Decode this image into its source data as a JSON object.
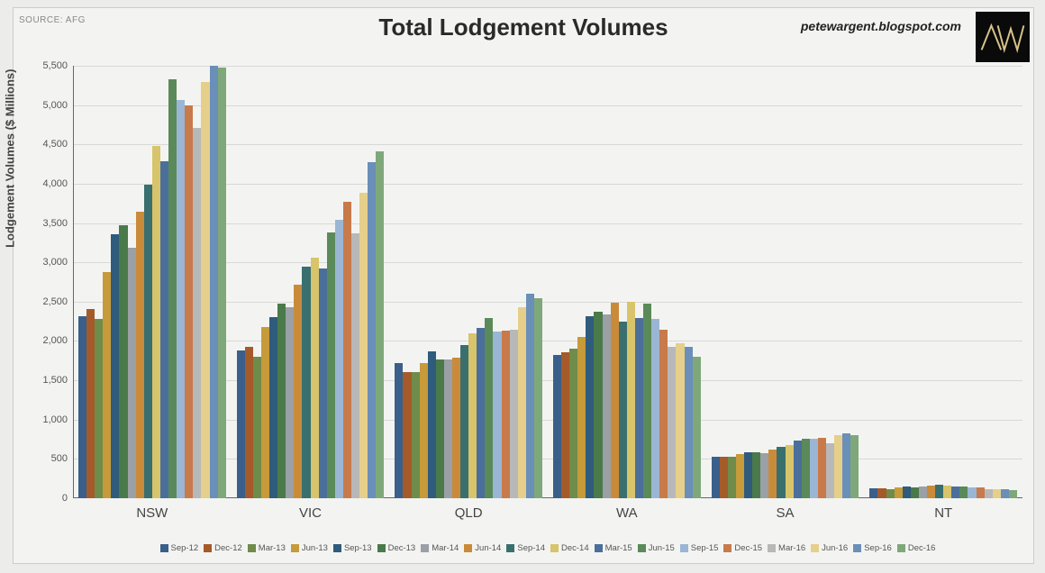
{
  "meta": {
    "source_label": "SOURCE: AFG",
    "title": "Total Lodgement Volumes",
    "credit": "petewargent.blogspot.com",
    "logo_text": "AW",
    "logo_stroke": "#d7c28a"
  },
  "chart": {
    "type": "bar",
    "background_color": "#f3f4f1",
    "gridline_color": "#d8d9d6",
    "axis_color": "#666666",
    "y_axis": {
      "label": "Lodgement Volumes ($ Millions)",
      "min": 0,
      "max": 5500,
      "tick_step": 500,
      "tick_labels": [
        "0",
        "500",
        "1,000",
        "1,500",
        "2,000",
        "2,500",
        "3,000",
        "3,500",
        "4,000",
        "4,500",
        "5,000",
        "5,500"
      ],
      "label_fontsize": 13,
      "tick_fontsize": 11
    },
    "categories": [
      "NSW",
      "VIC",
      "QLD",
      "WA",
      "SA",
      "NT"
    ],
    "series": [
      {
        "label": "Sep-12",
        "color": "#3a5f8a"
      },
      {
        "label": "Dec-12",
        "color": "#a55a2a"
      },
      {
        "label": "Mar-13",
        "color": "#6f8c4a"
      },
      {
        "label": "Jun-13",
        "color": "#c79a3a"
      },
      {
        "label": "Sep-13",
        "color": "#2f5b7c"
      },
      {
        "label": "Dec-13",
        "color": "#4a7a4a"
      },
      {
        "label": "Mar-14",
        "color": "#9aa0a6"
      },
      {
        "label": "Jun-14",
        "color": "#c98b3a"
      },
      {
        "label": "Sep-14",
        "color": "#3a6f6f"
      },
      {
        "label": "Dec-14",
        "color": "#d8c46a"
      },
      {
        "label": "Mar-15",
        "color": "#4a6f9a"
      },
      {
        "label": "Jun-15",
        "color": "#5a8a5a"
      },
      {
        "label": "Sep-15",
        "color": "#9ab6d4"
      },
      {
        "label": "Dec-15",
        "color": "#c87a4a"
      },
      {
        "label": "Mar-16",
        "color": "#b8b8b8"
      },
      {
        "label": "Jun-16",
        "color": "#e6cf8a"
      },
      {
        "label": "Sep-16",
        "color": "#6a8fb8"
      },
      {
        "label": "Dec-16",
        "color": "#7fa87a"
      }
    ],
    "data": {
      "NSW": [
        2320,
        2410,
        2280,
        2880,
        3360,
        3470,
        3180,
        3640,
        3990,
        4480,
        4280,
        5330,
        5070,
        5000,
        4710,
        5290,
        5500,
        5480
      ],
      "VIC": [
        1880,
        1920,
        1800,
        2180,
        2300,
        2480,
        2430,
        2720,
        2940,
        3060,
        2920,
        3380,
        3540,
        3770,
        3370,
        3880,
        4270,
        4410
      ],
      "QLD": [
        1720,
        1610,
        1600,
        1720,
        1870,
        1770,
        1770,
        1790,
        1950,
        2100,
        2170,
        2290,
        2120,
        2130,
        2140,
        2430,
        2600,
        2540
      ],
      "WA": [
        1820,
        1860,
        1900,
        2050,
        2310,
        2370,
        2340,
        2490,
        2250,
        2500,
        2290,
        2470,
        2280,
        2140,
        1920,
        1970,
        1930,
        1800
      ],
      "SA": [
        530,
        530,
        530,
        560,
        580,
        590,
        570,
        620,
        650,
        680,
        730,
        760,
        760,
        770,
        700,
        800,
        820,
        800
      ],
      "NT": [
        130,
        130,
        120,
        140,
        150,
        140,
        150,
        160,
        170,
        160,
        150,
        150,
        140,
        140,
        120,
        120,
        110,
        100
      ]
    },
    "xlabel_fontsize": 15,
    "legend_fontsize": 9.5,
    "title_fontsize": 26
  }
}
